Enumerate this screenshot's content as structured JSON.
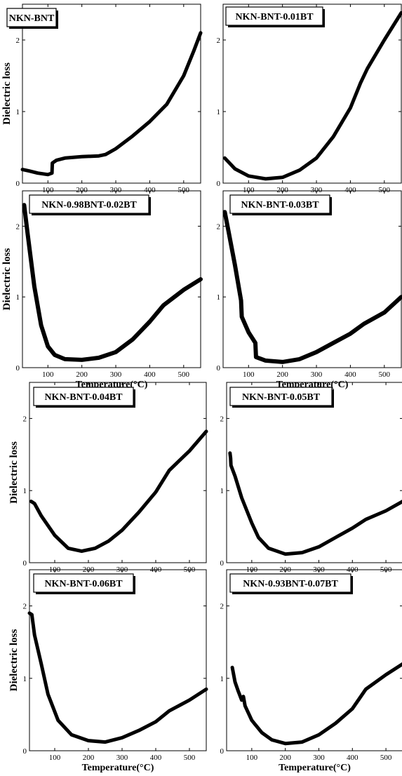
{
  "figure": {
    "panels": [
      {
        "title": "NKN-BNT",
        "ylabel": "Dielectric loss",
        "xlabel": ""
      },
      {
        "title": "NKN-BNT-0.01BT",
        "ylabel": "",
        "xlabel": ""
      },
      {
        "title": "NKN-0.98BNT-0.02BT",
        "ylabel": "Dielectric loss",
        "xlabel": "Temperature(°C)"
      },
      {
        "title": "NKN-BNT-0.03BT",
        "ylabel": "",
        "xlabel": "Temperature(°C)"
      },
      {
        "title": "NKN-BNT-0.04BT",
        "ylabel": "Dielectric loss",
        "xlabel": ""
      },
      {
        "title": "NKN-BNT-0.05BT",
        "ylabel": "",
        "xlabel": ""
      },
      {
        "title": "NKN-BNT-0.06BT",
        "ylabel": "Dielectric loss",
        "xlabel": "Temperature(°C)"
      },
      {
        "title": "NKN-0.93BNT-0.07BT",
        "ylabel": "",
        "xlabel": "Temperature(°C)"
      }
    ]
  },
  "chart_data": [
    {
      "type": "line",
      "title": "NKN-BNT",
      "xlabel": "",
      "ylabel": "Dielectric loss",
      "xlim": [
        25,
        550
      ],
      "ylim": [
        0,
        2.5
      ],
      "xticks": [
        100,
        200,
        300,
        400,
        500
      ],
      "yticks": [
        0,
        1,
        2
      ],
      "grid": false,
      "series": [
        {
          "x": [
            25,
            45,
            70,
            100,
            112,
            113,
            125,
            150,
            200,
            250,
            270,
            300,
            350,
            400,
            450,
            500,
            530,
            550
          ],
          "y": [
            0.19,
            0.17,
            0.14,
            0.12,
            0.14,
            0.28,
            0.32,
            0.35,
            0.37,
            0.38,
            0.4,
            0.48,
            0.66,
            0.86,
            1.1,
            1.5,
            1.85,
            2.1
          ]
        }
      ]
    },
    {
      "type": "line",
      "title": "NKN-BNT-0.01BT",
      "xlabel": "",
      "ylabel": "",
      "xlim": [
        25,
        550
      ],
      "ylim": [
        0,
        2.5
      ],
      "xticks": [
        100,
        200,
        300,
        400,
        500
      ],
      "yticks": [
        0,
        1,
        2
      ],
      "grid": false,
      "series": [
        {
          "x": [
            30,
            60,
            100,
            150,
            200,
            250,
            300,
            350,
            400,
            430,
            450,
            500,
            550
          ],
          "y": [
            0.35,
            0.2,
            0.1,
            0.06,
            0.08,
            0.18,
            0.35,
            0.65,
            1.05,
            1.4,
            1.6,
            2.0,
            2.38
          ]
        }
      ]
    },
    {
      "type": "line",
      "title": "NKN-0.98BNT-0.02BT",
      "xlabel": "Temperature(°C)",
      "ylabel": "Dielectric loss",
      "xlim": [
        25,
        550
      ],
      "ylim": [
        0,
        2.5
      ],
      "xticks": [
        100,
        200,
        300,
        400,
        500
      ],
      "yticks": [
        0,
        1,
        2
      ],
      "grid": false,
      "series": [
        {
          "x": [
            30,
            40,
            60,
            80,
            100,
            120,
            150,
            200,
            250,
            300,
            350,
            400,
            440,
            500,
            550
          ],
          "y": [
            2.3,
            1.9,
            1.15,
            0.6,
            0.3,
            0.18,
            0.12,
            0.11,
            0.14,
            0.22,
            0.4,
            0.65,
            0.88,
            1.1,
            1.25
          ]
        }
      ]
    },
    {
      "type": "line",
      "title": "NKN-BNT-0.03BT",
      "xlabel": "Temperature(°C)",
      "ylabel": "",
      "xlim": [
        25,
        550
      ],
      "ylim": [
        0,
        2.5
      ],
      "xticks": [
        100,
        200,
        300,
        400,
        500
      ],
      "yticks": [
        0,
        1,
        2
      ],
      "grid": false,
      "series": [
        {
          "x": [
            30,
            40,
            60,
            78,
            80,
            100,
            120,
            122,
            150,
            200,
            250,
            300,
            350,
            400,
            440,
            500,
            550
          ],
          "y": [
            2.2,
            1.95,
            1.45,
            0.95,
            0.72,
            0.5,
            0.35,
            0.15,
            0.1,
            0.08,
            0.12,
            0.22,
            0.35,
            0.48,
            0.62,
            0.78,
            1.0
          ]
        }
      ]
    },
    {
      "type": "line",
      "title": "NKN-BNT-0.04BT",
      "xlabel": "",
      "ylabel": "Dielectric loss",
      "xlim": [
        25,
        550
      ],
      "ylim": [
        0,
        2.5
      ],
      "xticks": [
        100,
        200,
        300,
        400,
        500
      ],
      "yticks": [
        0,
        1,
        2
      ],
      "grid": false,
      "series": [
        {
          "x": [
            30,
            40,
            60,
            100,
            140,
            180,
            220,
            260,
            300,
            350,
            400,
            440,
            500,
            550
          ],
          "y": [
            0.85,
            0.82,
            0.65,
            0.38,
            0.2,
            0.16,
            0.2,
            0.3,
            0.45,
            0.7,
            0.98,
            1.28,
            1.55,
            1.82
          ]
        }
      ]
    },
    {
      "type": "line",
      "title": "NKN-BNT-0.05BT",
      "xlabel": "",
      "ylabel": "",
      "xlim": [
        25,
        550
      ],
      "ylim": [
        0,
        2.5
      ],
      "xticks": [
        100,
        200,
        300,
        400,
        500
      ],
      "yticks": [
        0,
        1,
        2
      ],
      "grid": false,
      "series": [
        {
          "x": [
            35,
            37,
            38,
            50,
            70,
            100,
            120,
            150,
            200,
            250,
            300,
            350,
            400,
            440,
            500,
            550
          ],
          "y": [
            1.52,
            1.45,
            1.35,
            1.2,
            0.9,
            0.55,
            0.35,
            0.2,
            0.12,
            0.14,
            0.22,
            0.35,
            0.48,
            0.6,
            0.72,
            0.85
          ]
        }
      ]
    },
    {
      "type": "line",
      "title": "NKN-BNT-0.06BT",
      "xlabel": "Temperature(°C)",
      "ylabel": "Dielectric loss",
      "xlim": [
        25,
        550
      ],
      "ylim": [
        0,
        2.5
      ],
      "xticks": [
        100,
        200,
        300,
        400,
        500
      ],
      "yticks": [
        0,
        1,
        2
      ],
      "grid": false,
      "series": [
        {
          "x": [
            25,
            32,
            40,
            60,
            80,
            110,
            150,
            200,
            250,
            300,
            350,
            400,
            440,
            500,
            550
          ],
          "y": [
            1.9,
            1.88,
            1.6,
            1.2,
            0.78,
            0.42,
            0.22,
            0.14,
            0.12,
            0.18,
            0.28,
            0.4,
            0.55,
            0.7,
            0.85
          ]
        }
      ]
    },
    {
      "type": "line",
      "title": "NKN-0.93BNT-0.07BT",
      "xlabel": "Temperature(°C)",
      "ylabel": "",
      "xlim": [
        25,
        550
      ],
      "ylim": [
        0,
        2.5
      ],
      "xticks": [
        100,
        200,
        300,
        400,
        500
      ],
      "yticks": [
        0,
        1,
        2
      ],
      "grid": false,
      "series": [
        {
          "x": [
            42,
            50,
            60,
            70,
            75,
            80,
            100,
            130,
            160,
            200,
            250,
            300,
            350,
            400,
            440,
            500,
            550
          ],
          "y": [
            1.15,
            0.95,
            0.82,
            0.7,
            0.75,
            0.62,
            0.42,
            0.25,
            0.15,
            0.1,
            0.12,
            0.22,
            0.38,
            0.58,
            0.85,
            1.05,
            1.2
          ]
        }
      ]
    }
  ]
}
